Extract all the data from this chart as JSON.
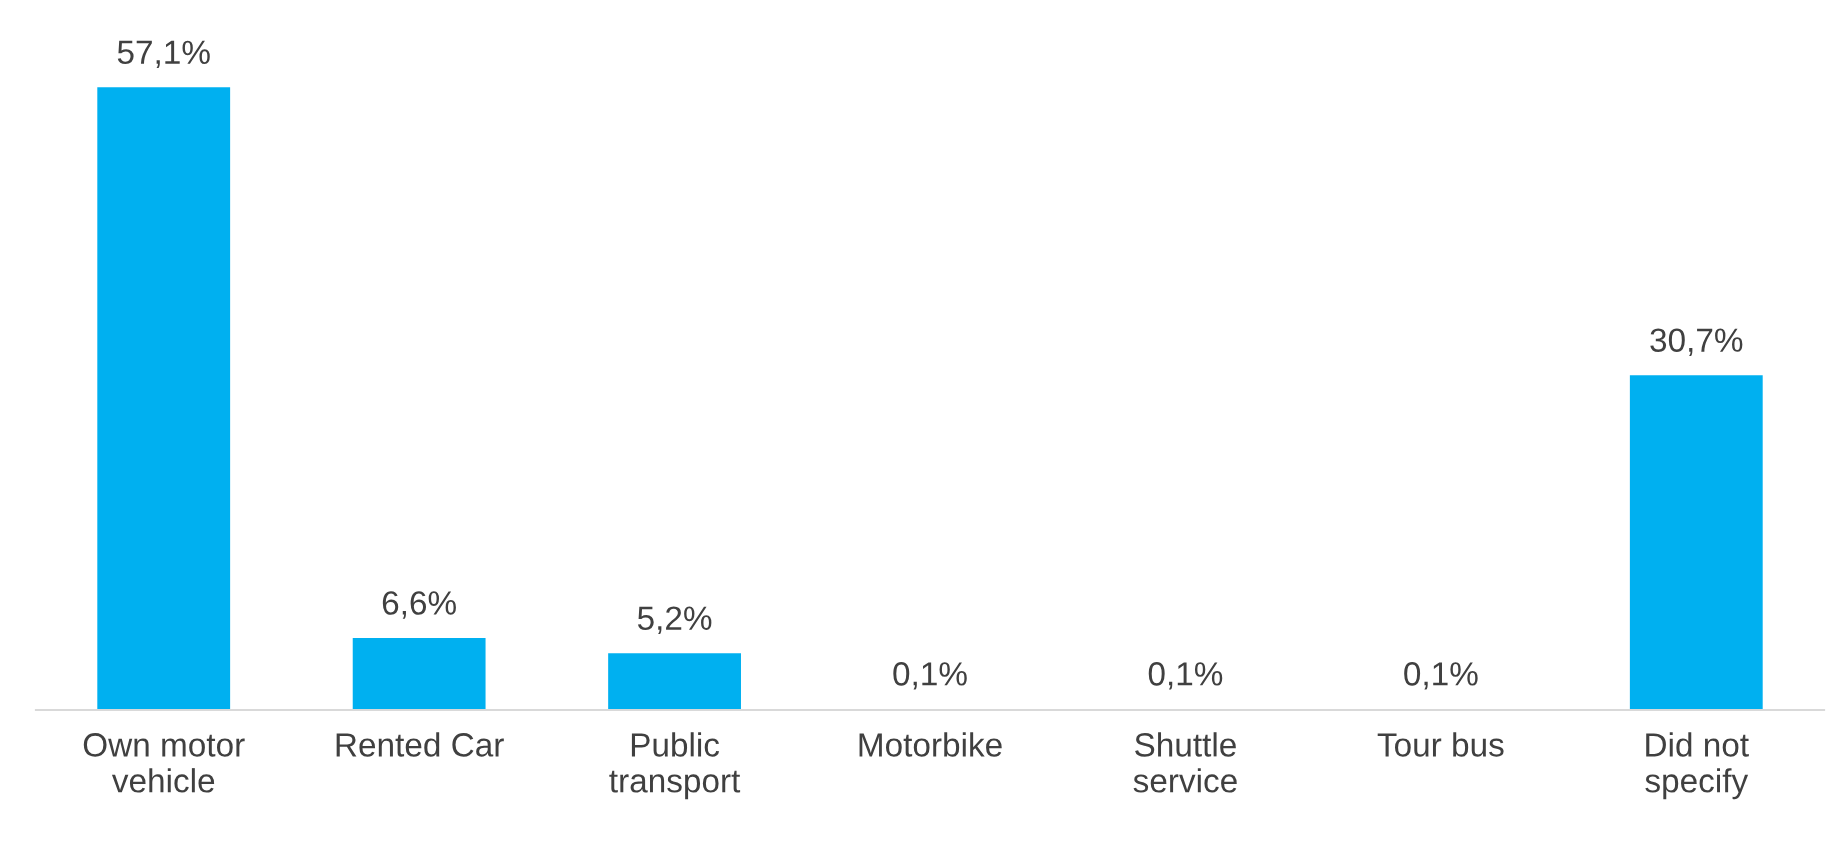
{
  "chart_data": {
    "type": "bar",
    "categories": [
      "Own motor\nvehicle",
      "Rented Car",
      "Public\ntransport",
      "Motorbike",
      "Shuttle\nservice",
      "Tour bus",
      "Did not\nspecify"
    ],
    "values": [
      57.1,
      6.6,
      5.2,
      0.1,
      0.1,
      0.1,
      30.7
    ],
    "value_labels": [
      "57,1%",
      "6,6%",
      "5,2%",
      "0,1%",
      "0,1%",
      "0,1%",
      "30,7%"
    ],
    "color": "#00b0f0",
    "grid": false,
    "legend": false
  }
}
